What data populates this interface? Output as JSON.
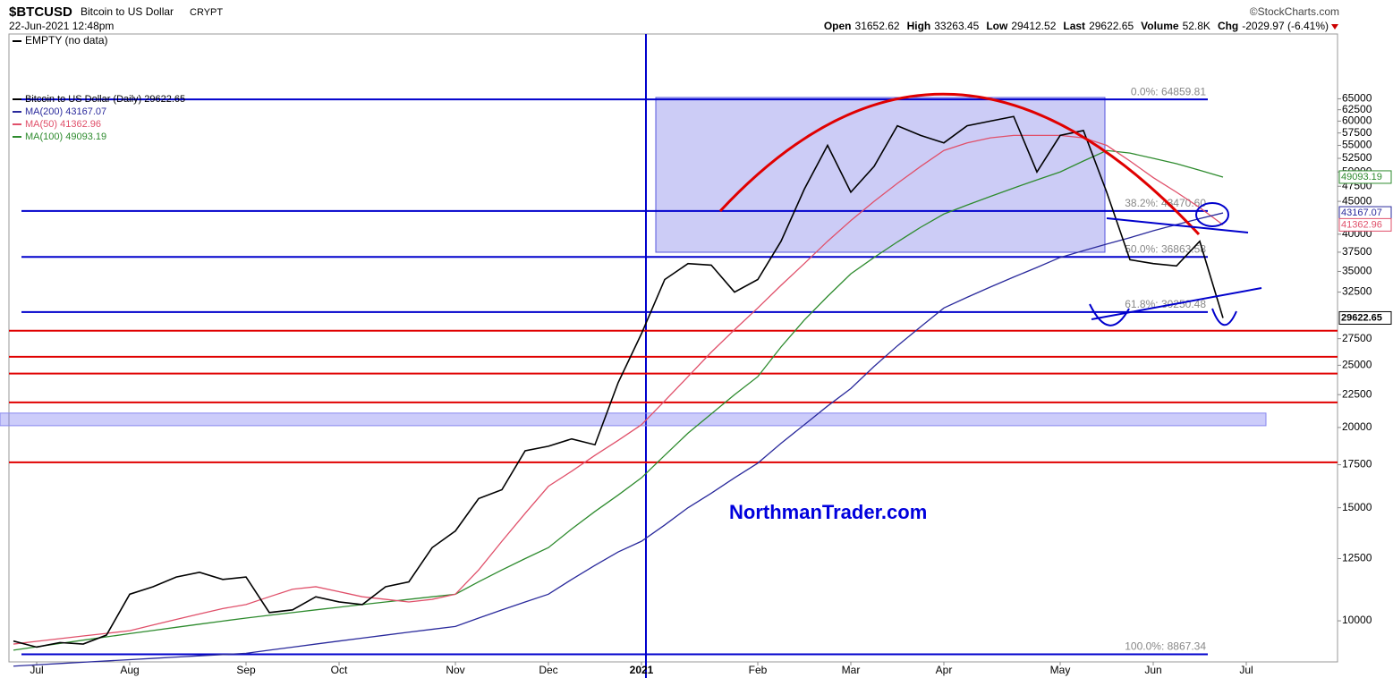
{
  "header": {
    "symbol": "$BTCUSD",
    "name": "Bitcoin to US Dollar",
    "exchange": "CRYPT",
    "datetime": "22-Jun-2021 12:48pm",
    "source": "©StockCharts.com",
    "stats": [
      {
        "label": "Open",
        "value": "31652.62"
      },
      {
        "label": "High",
        "value": "33263.45"
      },
      {
        "label": "Low",
        "value": "29412.52"
      },
      {
        "label": "Last",
        "value": "29622.65"
      },
      {
        "label": "Volume",
        "value": "52.8K"
      },
      {
        "label": "Chg",
        "value": "-2029.97 (-6.41%)"
      }
    ],
    "upper_panel": "EMPTY (no data)"
  },
  "chart_data": {
    "type": "line",
    "log_scale": true,
    "watermark": "NorthmanTrader.com",
    "categories": [
      null,
      "Jul",
      null,
      null,
      null,
      "Aug",
      null,
      null,
      null,
      null,
      "Sep",
      null,
      null,
      null,
      "Oct",
      null,
      null,
      null,
      null,
      "Nov",
      null,
      null,
      null,
      "Dec",
      null,
      null,
      null,
      "2021",
      null,
      null,
      null,
      null,
      "Feb",
      null,
      null,
      null,
      "Mar",
      null,
      null,
      null,
      "Apr",
      null,
      null,
      null,
      null,
      "May",
      null,
      null,
      null,
      "Jun",
      null,
      null,
      null,
      "Jul"
    ],
    "series": [
      {
        "name": "Bitcoin to US Dollar (Daily) 29622.65",
        "color": "#000000",
        "tag": "29622.65",
        "values": [
          9300,
          9100,
          9250,
          9200,
          9500,
          11000,
          11300,
          11700,
          11900,
          11600,
          11700,
          10300,
          10400,
          10900,
          10700,
          10600,
          11300,
          11500,
          13000,
          13800,
          15500,
          16000,
          18400,
          18700,
          19200,
          18800,
          23500,
          28000,
          34000,
          36000,
          35800,
          32500,
          34000,
          39000,
          47000,
          55000,
          46500,
          51000,
          59000,
          57000,
          55500,
          59000,
          60000,
          61000,
          50000,
          57000,
          58000,
          46500,
          36500,
          36000,
          35700,
          39000,
          29622.65,
          null
        ]
      },
      {
        "name": "MA(200) 43167.07",
        "color": "#2a2a9c",
        "tag": "43167.07",
        "values": [
          8500,
          8540,
          8580,
          8620,
          8660,
          8700,
          8740,
          8780,
          8820,
          8860,
          8900,
          9000,
          9100,
          9200,
          9300,
          9400,
          9500,
          9600,
          9700,
          9800,
          10100,
          10400,
          10700,
          11000,
          11600,
          12200,
          12800,
          13300,
          14100,
          15000,
          15800,
          16700,
          17600,
          18900,
          20200,
          21600,
          23000,
          24900,
          26800,
          28700,
          30700,
          31900,
          33100,
          34300,
          35500,
          36800,
          37700,
          38600,
          39500,
          40500,
          41400,
          42300,
          43167.07,
          null
        ]
      },
      {
        "name": "MA(50) 41362.96",
        "color": "#e0506a",
        "tag": "41362.96",
        "values": [
          9200,
          9290,
          9380,
          9470,
          9560,
          9650,
          9850,
          10050,
          10250,
          10450,
          10600,
          10900,
          11200,
          11300,
          11100,
          10900,
          10800,
          10700,
          10800,
          11000,
          12000,
          13300,
          14700,
          16200,
          17100,
          18100,
          19100,
          20200,
          22000,
          24000,
          26200,
          28400,
          30700,
          33300,
          36000,
          39000,
          42000,
          45000,
          48000,
          51000,
          54000,
          55500,
          56500,
          57000,
          57000,
          57000,
          56500,
          55000,
          52000,
          49000,
          46500,
          44000,
          41362.96,
          null
        ]
      },
      {
        "name": "MA(100) 49093.19",
        "color": "#2e8b2e",
        "tag": "49093.19",
        "values": [
          9000,
          9110,
          9220,
          9330,
          9440,
          9550,
          9660,
          9770,
          9880,
          9990,
          10100,
          10200,
          10300,
          10400,
          10500,
          10600,
          10700,
          10800,
          10900,
          11000,
          11500,
          12000,
          12500,
          13000,
          13900,
          14800,
          15700,
          16700,
          18100,
          19600,
          21000,
          22500,
          24000,
          26700,
          29400,
          32000,
          34700,
          36800,
          38900,
          41000,
          43000,
          44400,
          45800,
          47200,
          48600,
          50000,
          52000,
          54000,
          53500,
          52500,
          51500,
          50300,
          49093.19,
          null
        ]
      }
    ],
    "ylim": [
      8630,
      82000
    ],
    "yticks": [
      10000,
      12500,
      15000,
      17500,
      20000,
      22500,
      25000,
      27500,
      32500,
      35000,
      37500,
      40000,
      45000,
      47500,
      50000,
      52500,
      55000,
      57500,
      60000,
      62500,
      65000
    ],
    "fib_levels": [
      {
        "value": 64859.81,
        "label": "0.0%: 64859.81"
      },
      {
        "value": 43470.6,
        "label": "38.2%: 43470.60"
      },
      {
        "value": 36863.58,
        "label": "50.0%: 36863.58"
      },
      {
        "value": 30250.48,
        "label": "61.8%: 30250.48"
      },
      {
        "value": 8867.34,
        "label": "100.0%: 8867.34"
      }
    ],
    "fib_color": "#0000cc",
    "support_levels": [
      28300,
      25770,
      24270,
      21880,
      17650
    ],
    "support_color": "#e00000",
    "zone": [
      20130,
      21060
    ]
  }
}
